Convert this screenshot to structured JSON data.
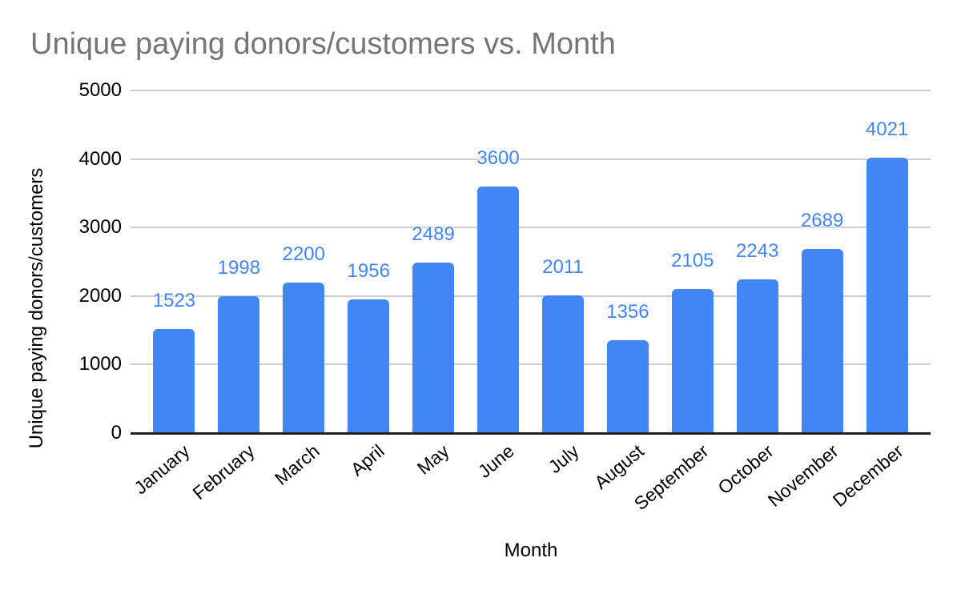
{
  "chart_data": {
    "type": "bar",
    "title": "Unique paying donors/customers vs. Month",
    "xlabel": "Month",
    "ylabel": "Unique paying donors/customers",
    "categories": [
      "January",
      "February",
      "March",
      "April",
      "May",
      "June",
      "July",
      "August",
      "September",
      "October",
      "November",
      "December"
    ],
    "values": [
      1523,
      1998,
      2200,
      1956,
      2489,
      3600,
      2011,
      1356,
      2105,
      2243,
      2689,
      4021
    ],
    "ylim": [
      0,
      5000
    ],
    "yticks": [
      0,
      1000,
      2000,
      3000,
      4000,
      5000
    ],
    "grid": true,
    "legend": "none",
    "data_labels": true,
    "colors": {
      "bar": "#4285F4",
      "data_label": "#4285F4",
      "title": "#757575",
      "axis_text": "#000000",
      "gridline": "#CCCCCC",
      "baseline": "#212121"
    }
  }
}
